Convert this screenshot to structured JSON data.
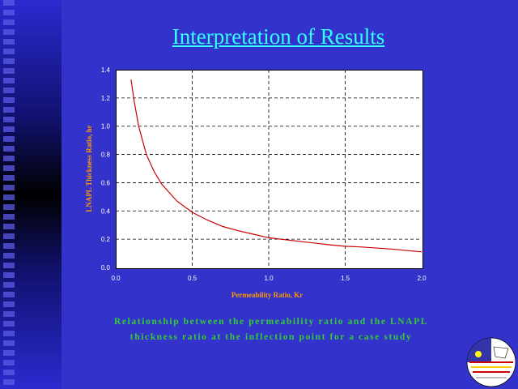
{
  "slide": {
    "title": "Interpretation of Results",
    "caption_line1": "Relationship between the permeability ratio and the LNAPL",
    "caption_line2": "thickness ratio at the inflection point for a case study"
  },
  "colors": {
    "background": "#3333cc",
    "title": "#33ffff",
    "axis_label": "#ff9900",
    "caption": "#33cc33",
    "curve": "#cc0000"
  },
  "chart_data": {
    "type": "line",
    "xlabel": "Permeability Ratio, Kr",
    "ylabel": "LNAPL Thickness Ratio, hr",
    "xlim": [
      0,
      2.0
    ],
    "ylim": [
      0,
      1.4
    ],
    "xticks": [
      "0.0",
      "0.5",
      "1.0",
      "1.5",
      "2.0"
    ],
    "yticks": [
      "0.0",
      "0.2",
      "0.4",
      "0.6",
      "0.8",
      "1.0",
      "1.2",
      "1.4"
    ],
    "grid": true,
    "series": [
      {
        "x": [
          0.1,
          0.12,
          0.15,
          0.2,
          0.25,
          0.3,
          0.4,
          0.5,
          0.6,
          0.7,
          0.8,
          0.9,
          1.0,
          1.2,
          1.4,
          1.5,
          1.6,
          1.8,
          2.0
        ],
        "y": [
          1.33,
          1.18,
          1.0,
          0.8,
          0.68,
          0.59,
          0.47,
          0.39,
          0.335,
          0.29,
          0.26,
          0.235,
          0.21,
          0.185,
          0.16,
          0.15,
          0.145,
          0.13,
          0.11
        ]
      }
    ]
  }
}
